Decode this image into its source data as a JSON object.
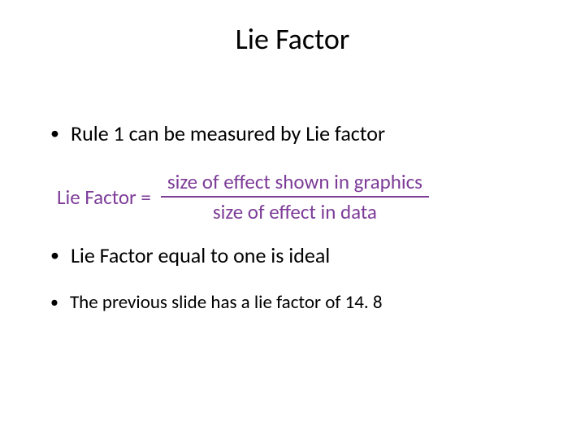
{
  "title": "Lie Factor",
  "bullets": {
    "b1": "Rule 1 can be measured by Lie factor",
    "b2": "Lie Factor equal to one is ideal",
    "b3": "The previous slide has a lie factor of 14. 8"
  },
  "formula": {
    "lhs": "Lie Factor =",
    "numerator": "size of effect shown in graphics",
    "denominator": "size of effect in data"
  },
  "colors": {
    "text": "#000000",
    "formula": "#7d3c98",
    "background": "#ffffff"
  },
  "typography": {
    "title_fontsize": 36,
    "body_fontsize_large": 26,
    "body_fontsize_small": 23,
    "formula_fontsize": 25,
    "font_family": "Calibri"
  }
}
